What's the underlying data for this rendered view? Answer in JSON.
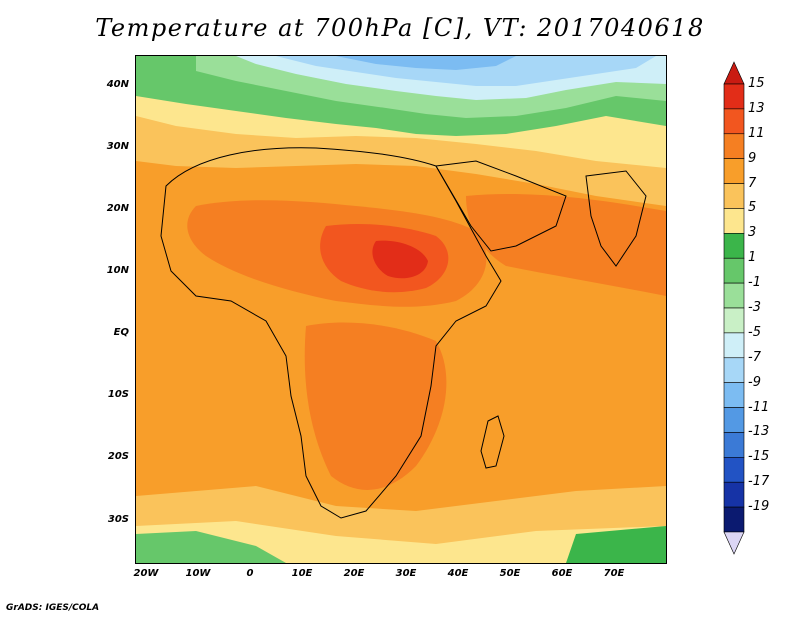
{
  "title": "Temperature at 700hPa [C], VT: 2017040618",
  "footer": "GrADS: IGES/COLA",
  "axes": {
    "lat_labels": [
      "40N",
      "30N",
      "20N",
      "10N",
      "EQ",
      "10S",
      "20S",
      "30S"
    ],
    "lon_labels": [
      "20W",
      "10W",
      "0",
      "10E",
      "20E",
      "30E",
      "40E",
      "50E",
      "60E",
      "70E"
    ]
  },
  "colorbar": {
    "labels": [
      "15",
      "13",
      "11",
      "9",
      "7",
      "5",
      "3",
      "1",
      "-1",
      "-3",
      "-5",
      "-7",
      "-9",
      "-11",
      "-13",
      "-15",
      "-17",
      "-19"
    ],
    "colors": [
      "#e22d18",
      "#f2561f",
      "#f57f22",
      "#f89e2a",
      "#fac35b",
      "#fde68e",
      "#3bb54a",
      "#66c76a",
      "#9adf99",
      "#c9f0c6",
      "#cfeff8",
      "#a7d7f7",
      "#7cbcf2",
      "#5399e4",
      "#3b7ad6",
      "#2253c4",
      "#1633a6",
      "#0b1a70"
    ]
  },
  "chart_data": {
    "type": "heatmap",
    "title": "Temperature at 700hPa [C], VT: 2017040618",
    "variable": "Temperature",
    "level": "700hPa",
    "units": "C",
    "valid_time": "2017040618",
    "lon_range": [
      -22,
      80
    ],
    "lat_range": [
      -37,
      45
    ],
    "x_ticks": [
      "20W",
      "10W",
      "0",
      "10E",
      "20E",
      "30E",
      "40E",
      "50E",
      "60E",
      "70E"
    ],
    "y_ticks": [
      "40N",
      "30N",
      "20N",
      "10N",
      "EQ",
      "10S",
      "20S",
      "30S"
    ],
    "colorbar_levels": [
      15,
      13,
      11,
      9,
      7,
      5,
      3,
      1,
      -1,
      -3,
      -5,
      -7,
      -9,
      -11,
      -13,
      -15,
      -17,
      -19
    ]
  }
}
